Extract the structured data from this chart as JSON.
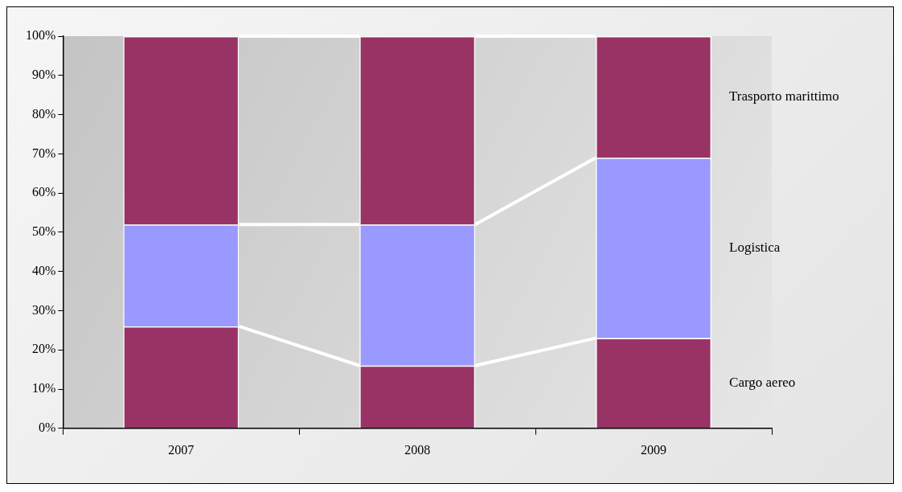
{
  "chart_data": {
    "type": "bar",
    "stacked": true,
    "categories": [
      "2007",
      "2008",
      "2009"
    ],
    "series": [
      {
        "name": "Cargo aereo",
        "color": "#993366",
        "values": [
          26,
          16,
          23
        ]
      },
      {
        "name": "Logistica",
        "color": "#9999ff",
        "values": [
          26,
          36,
          46
        ]
      },
      {
        "name": "Trasporto marittimo",
        "color": "#993366",
        "values": [
          48,
          48,
          31
        ]
      }
    ],
    "ylim": [
      0,
      100
    ],
    "yticks": [
      {
        "value": 0,
        "label": "0%"
      },
      {
        "value": 10,
        "label": "10%"
      },
      {
        "value": 20,
        "label": "20%"
      },
      {
        "value": 30,
        "label": "30%"
      },
      {
        "value": 40,
        "label": "40%"
      },
      {
        "value": 50,
        "label": "50%"
      },
      {
        "value": 60,
        "label": "60%"
      },
      {
        "value": 70,
        "label": "70%"
      },
      {
        "value": 80,
        "label": "80%"
      },
      {
        "value": 90,
        "label": "90%"
      },
      {
        "value": 100,
        "label": "100%"
      }
    ],
    "grid": false,
    "legend": false
  }
}
